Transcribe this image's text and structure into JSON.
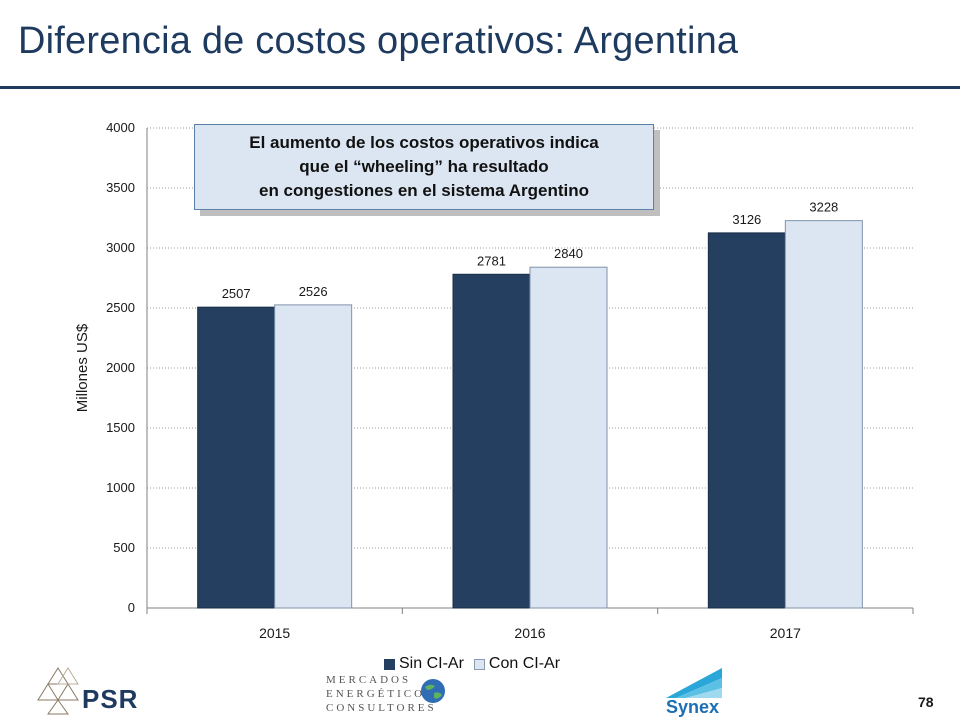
{
  "slide": {
    "title": "Diferencia de costos operativos: Argentina",
    "page_number": "78"
  },
  "callout": {
    "lines": [
      "El aumento de los costos operativos indica",
      "que el “wheeling” ha resultado",
      "en congestiones en el sistema Argentino"
    ]
  },
  "logos": {
    "psr": "PSR",
    "mec": [
      "MERCADOS",
      "ENERGÉTICOS",
      "CONSULTORES"
    ],
    "synex": "Synex"
  },
  "colors": {
    "sin": "#243f60",
    "con": "#dce6f2",
    "title": "#1f3a5f"
  },
  "chart_data": {
    "type": "bar",
    "categories": [
      "2015",
      "2016",
      "2017"
    ],
    "series": [
      {
        "name": "Sin CI-Ar",
        "values": [
          2507,
          2781,
          3126
        ]
      },
      {
        "name": "Con CI-Ar",
        "values": [
          2526,
          2840,
          3228
        ]
      }
    ],
    "ylabel": "Millones US$",
    "ylim": [
      0,
      4000
    ],
    "yticks": [
      0,
      500,
      1000,
      1500,
      2000,
      2500,
      3000,
      3500,
      4000
    ],
    "grid": true,
    "legend": "bottom"
  }
}
